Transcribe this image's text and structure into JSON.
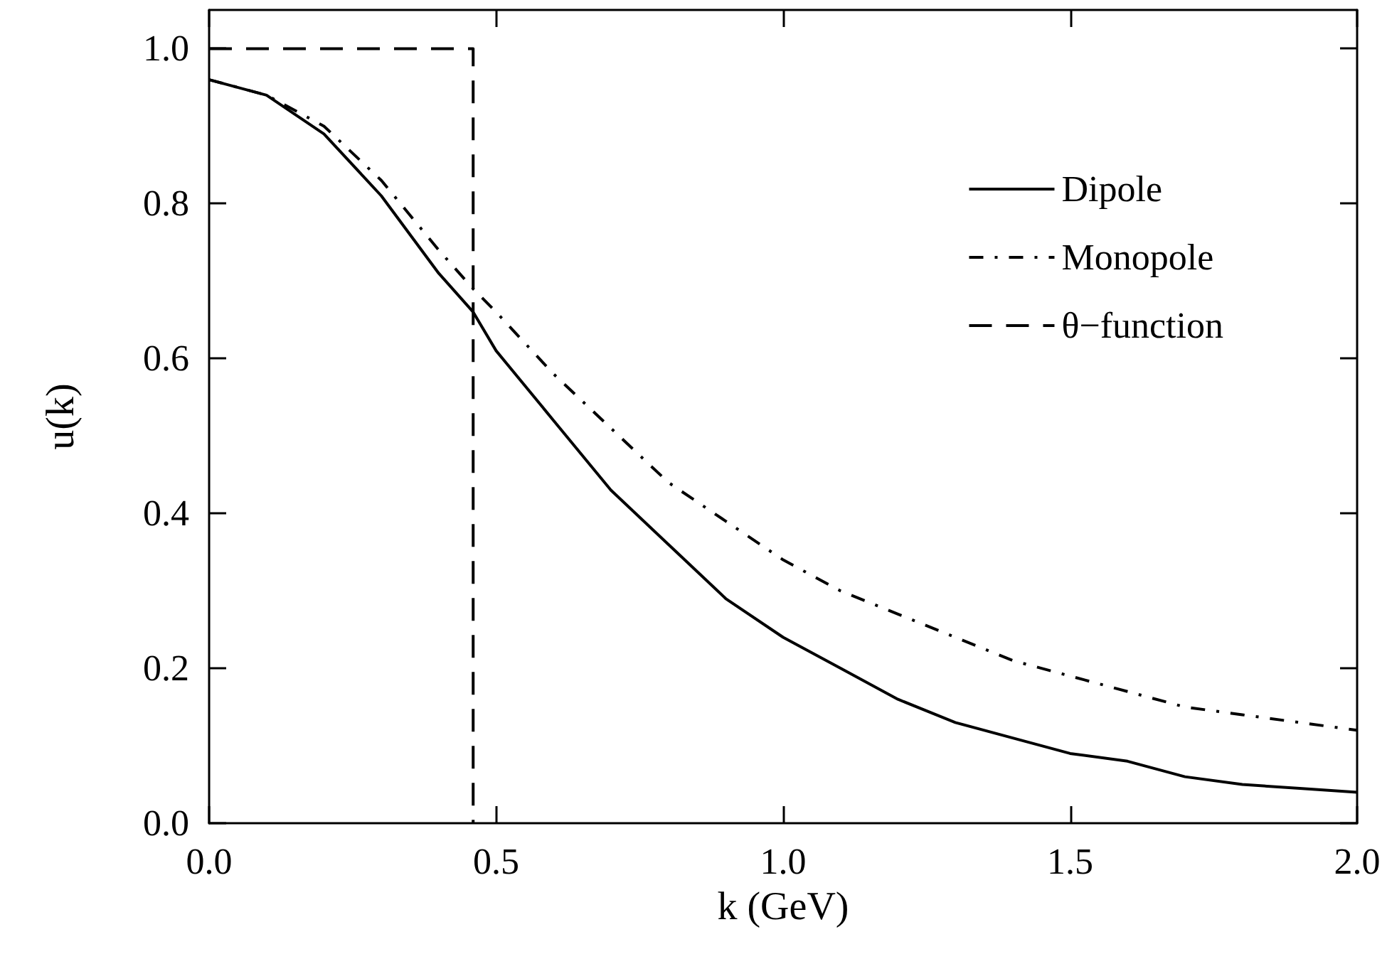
{
  "chart_data": {
    "type": "line",
    "xlabel": "k (GeV)",
    "ylabel": "u(k)",
    "xlim": [
      0,
      2.0
    ],
    "xticks": [
      {
        "value": 0,
        "label": "0.0"
      },
      0.5,
      {
        "value": 1,
        "label": "1.0"
      },
      1.5,
      {
        "value": 2,
        "label": "2.0"
      }
    ],
    "ylim": [
      0,
      1.05
    ],
    "yticks": [
      {
        "value": 0,
        "label": "0.0"
      },
      0.2,
      0.4,
      0.6,
      0.8,
      {
        "value": 1,
        "label": "1.0"
      }
    ],
    "grid": false,
    "legend": "top right",
    "marker": "none",
    "x": [
      0,
      0.1,
      0.2,
      0.3,
      0.4,
      0.46,
      0.46,
      0.5,
      0.6,
      0.7,
      0.8,
      0.9,
      1.0,
      1.1,
      1.2,
      1.3,
      1.4,
      1.5,
      1.6,
      1.7,
      1.8,
      1.9,
      2.0
    ],
    "series": [
      {
        "name": "Dipole",
        "color": "#000000",
        "line_style": "solid",
        "values": [
          0.96,
          0.94,
          0.89,
          0.81,
          0.71,
          0.66,
          0.66,
          0.61,
          0.52,
          0.43,
          0.36,
          0.29,
          0.24,
          0.2,
          0.16,
          0.13,
          0.11,
          0.09,
          0.08,
          0.06,
          0.05,
          0.045,
          0.04
        ]
      },
      {
        "name": "Monopole",
        "color": "#000000",
        "line_style": "dashdot",
        "values": [
          0.96,
          0.94,
          0.9,
          0.83,
          0.74,
          0.69,
          0.69,
          0.66,
          0.58,
          0.51,
          0.44,
          0.39,
          0.34,
          0.3,
          0.27,
          0.24,
          0.21,
          0.19,
          0.17,
          0.15,
          0.14,
          0.13,
          0.12
        ]
      },
      {
        "name": "θ−function",
        "color": "#000000",
        "line_style": "dashed",
        "values": [
          1.0,
          1.0,
          1.0,
          1.0,
          1.0,
          1.0,
          0.0,
          null,
          null,
          null,
          null,
          null,
          null,
          null,
          null,
          null,
          null,
          null,
          null,
          null,
          null,
          null,
          null
        ]
      }
    ]
  }
}
